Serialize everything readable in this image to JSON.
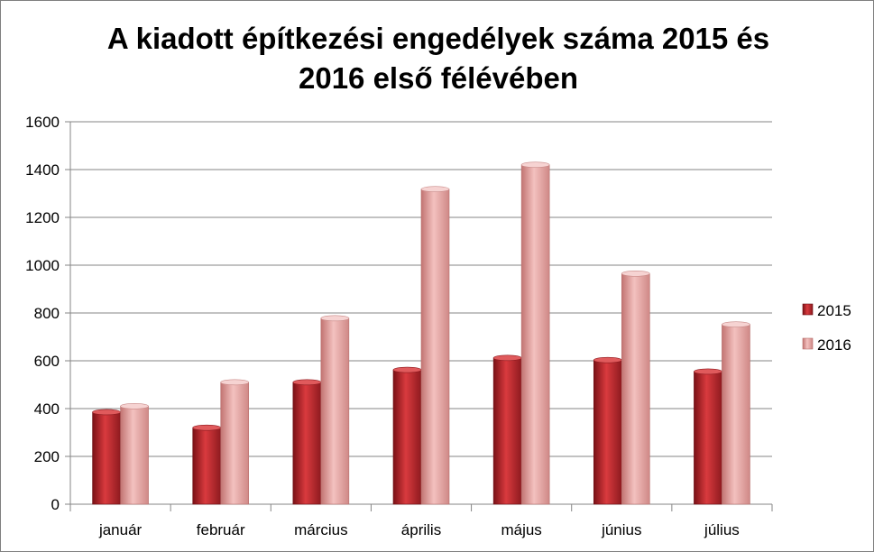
{
  "chart_data": {
    "type": "bar",
    "title": "A kiadott építkezési engedélyek száma 2015 és 2016 első félévében",
    "title_lines": [
      "A kiadott építkezési engedélyek száma 2015 és",
      "2016 első félévében"
    ],
    "categories": [
      "január",
      "február",
      "március",
      "április",
      "május",
      "június",
      "július"
    ],
    "series": [
      {
        "name": "2015",
        "values": [
          385,
          320,
          510,
          562,
          612,
          603,
          555
        ],
        "color": "#c0272d"
      },
      {
        "name": "2016",
        "values": [
          410,
          510,
          778,
          1318,
          1420,
          965,
          752
        ],
        "color": "#e8a2a0"
      }
    ],
    "ylim": [
      0,
      1600
    ],
    "yticks": [
      0,
      200,
      400,
      600,
      800,
      1000,
      1200,
      1400,
      1600
    ],
    "grid": true,
    "legend_position": "right"
  }
}
